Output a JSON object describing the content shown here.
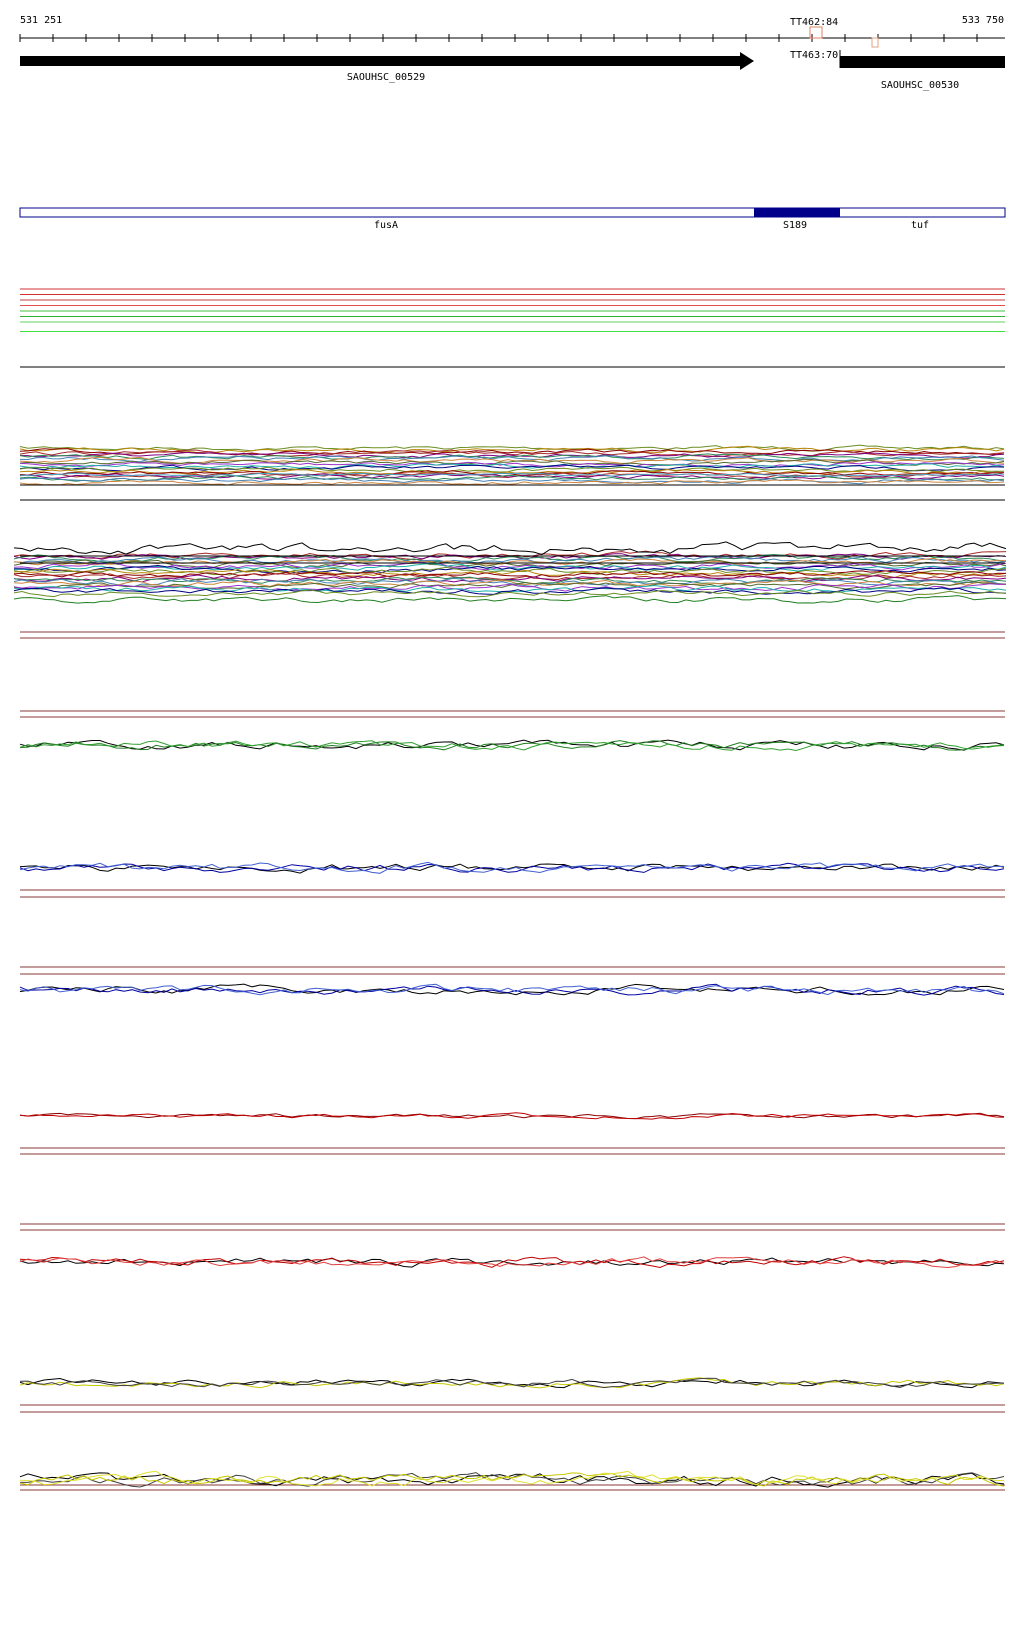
{
  "ruler": {
    "start": "531 251",
    "end": "533 750",
    "markers": [
      "TT462:84",
      "TT463:70"
    ]
  },
  "genes": [
    "SAOUHSC_00529",
    "SAOUHSC_00530"
  ],
  "transcripts": [
    "fusA",
    "S189",
    "tuf"
  ]
}
